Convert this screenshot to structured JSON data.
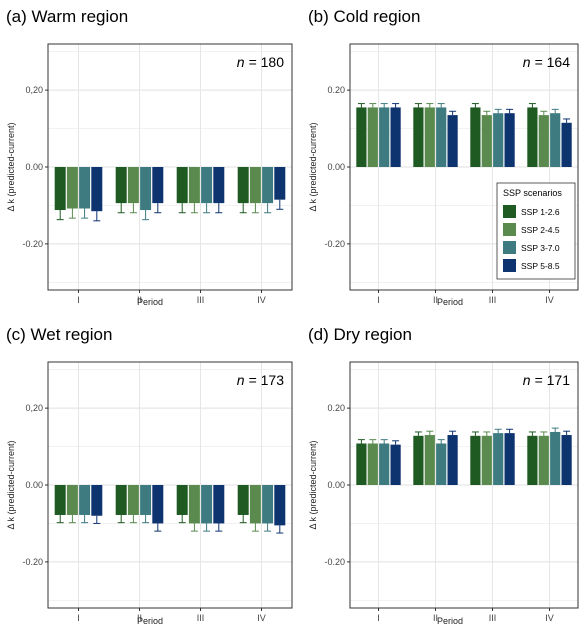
{
  "colors": {
    "ssp126": "#1e5a22",
    "ssp245": "#5a8a4e",
    "ssp370": "#3e7b80",
    "ssp585": "#0e3470",
    "grid": "#ebebeb",
    "errorbar": "#333333"
  },
  "legend": {
    "title": "SSP scenarios",
    "items": [
      "SSP 1-2.6",
      "SSP 2-4.5",
      "SSP 3-7.0",
      "SSP 5-8.5"
    ],
    "placement": "inside-bottom-right of panel (b)"
  },
  "chart_data": [
    {
      "type": "bar",
      "panel": "a",
      "title": "(a) Warm region",
      "n_prefix": "n",
      "n_value": "= 180",
      "xlabel": "Period",
      "ylabel": "Δ k (predicted-current)",
      "categories": [
        "I",
        "II",
        "III",
        "IV"
      ],
      "ylim": [
        -0.32,
        0.32
      ],
      "yticks": [
        "0,20",
        "0.00",
        "-0.20"
      ],
      "ytick_values": [
        0.2,
        0.0,
        -0.2
      ],
      "series": [
        {
          "name": "SSP 1-2.6",
          "values": [
            -0.112,
            -0.094,
            -0.094,
            -0.094
          ],
          "errors": [
            0.025,
            0.025,
            0.025,
            0.025
          ]
        },
        {
          "name": "SSP 2-4.5",
          "values": [
            -0.108,
            -0.094,
            -0.094,
            -0.094
          ],
          "errors": [
            0.025,
            0.025,
            0.025,
            0.025
          ]
        },
        {
          "name": "SSP 3-7.0",
          "values": [
            -0.108,
            -0.112,
            -0.094,
            -0.094
          ],
          "errors": [
            0.025,
            0.025,
            0.025,
            0.025
          ]
        },
        {
          "name": "SSP 5-8.5",
          "values": [
            -0.115,
            -0.094,
            -0.094,
            -0.085
          ],
          "errors": [
            0.025,
            0.025,
            0.025,
            0.025
          ]
        }
      ]
    },
    {
      "type": "bar",
      "panel": "b",
      "title": "(b) Cold region",
      "n_prefix": "n",
      "n_value": "= 164",
      "xlabel": "Period",
      "ylabel": "Δ k (predicted-current)",
      "categories": [
        "I",
        "II",
        "III",
        "IV"
      ],
      "ylim": [
        -0.32,
        0.32
      ],
      "yticks": [
        "0.20",
        "0.00",
        "-0.20"
      ],
      "ytick_values": [
        0.2,
        0.0,
        -0.2
      ],
      "series": [
        {
          "name": "SSP 1-2.6",
          "values": [
            0.155,
            0.155,
            0.155,
            0.155
          ],
          "errors": [
            0.01,
            0.01,
            0.01,
            0.01
          ]
        },
        {
          "name": "SSP 2-4.5",
          "values": [
            0.155,
            0.155,
            0.135,
            0.135
          ],
          "errors": [
            0.01,
            0.01,
            0.01,
            0.01
          ]
        },
        {
          "name": "SSP 3-7.0",
          "values": [
            0.155,
            0.155,
            0.14,
            0.14
          ],
          "errors": [
            0.01,
            0.01,
            0.01,
            0.01
          ]
        },
        {
          "name": "SSP 5-8.5",
          "values": [
            0.155,
            0.135,
            0.14,
            0.115
          ],
          "errors": [
            0.01,
            0.01,
            0.01,
            0.01
          ]
        }
      ]
    },
    {
      "type": "bar",
      "panel": "c",
      "title": "(c) Wet region",
      "n_prefix": "n",
      "n_value": "= 173",
      "xlabel": "Period",
      "ylabel": "Δ k (predicted-current)",
      "categories": [
        "I",
        "II",
        "III",
        "IV"
      ],
      "ylim": [
        -0.32,
        0.32
      ],
      "yticks": [
        "0,20",
        "0.00",
        "-0.20"
      ],
      "ytick_values": [
        0.2,
        0.0,
        -0.2
      ],
      "series": [
        {
          "name": "SSP 1-2.6",
          "values": [
            -0.078,
            -0.078,
            -0.078,
            -0.078
          ],
          "errors": [
            0.02,
            0.02,
            0.02,
            0.02
          ]
        },
        {
          "name": "SSP 2-4.5",
          "values": [
            -0.078,
            -0.078,
            -0.1,
            -0.1
          ],
          "errors": [
            0.02,
            0.02,
            0.02,
            0.02
          ]
        },
        {
          "name": "SSP 3-7.0",
          "values": [
            -0.078,
            -0.078,
            -0.1,
            -0.1
          ],
          "errors": [
            0.02,
            0.02,
            0.02,
            0.02
          ]
        },
        {
          "name": "SSP 5-8.5",
          "values": [
            -0.08,
            -0.1,
            -0.1,
            -0.105
          ],
          "errors": [
            0.02,
            0.02,
            0.02,
            0.02
          ]
        }
      ]
    },
    {
      "type": "bar",
      "panel": "d",
      "title": "(d) Dry region",
      "n_prefix": "n",
      "n_value": "= 171",
      "xlabel": "Period",
      "ylabel": "Δ k (predicted-current)",
      "categories": [
        "I",
        "II",
        "III",
        "IV"
      ],
      "ylim": [
        -0.32,
        0.32
      ],
      "yticks": [
        "0.20",
        "0.00",
        "-0.20"
      ],
      "ytick_values": [
        0.2,
        0.0,
        -0.2
      ],
      "series": [
        {
          "name": "SSP 1-2.6",
          "values": [
            0.108,
            0.128,
            0.128,
            0.128
          ],
          "errors": [
            0.01,
            0.01,
            0.01,
            0.01
          ]
        },
        {
          "name": "SSP 2-4.5",
          "values": [
            0.108,
            0.13,
            0.128,
            0.128
          ],
          "errors": [
            0.01,
            0.01,
            0.01,
            0.01
          ]
        },
        {
          "name": "SSP 3-7.0",
          "values": [
            0.108,
            0.108,
            0.135,
            0.138
          ],
          "errors": [
            0.01,
            0.01,
            0.01,
            0.01
          ]
        },
        {
          "name": "SSP 5-8.5",
          "values": [
            0.105,
            0.13,
            0.135,
            0.13
          ],
          "errors": [
            0.01,
            0.01,
            0.01,
            0.01
          ]
        }
      ]
    }
  ]
}
